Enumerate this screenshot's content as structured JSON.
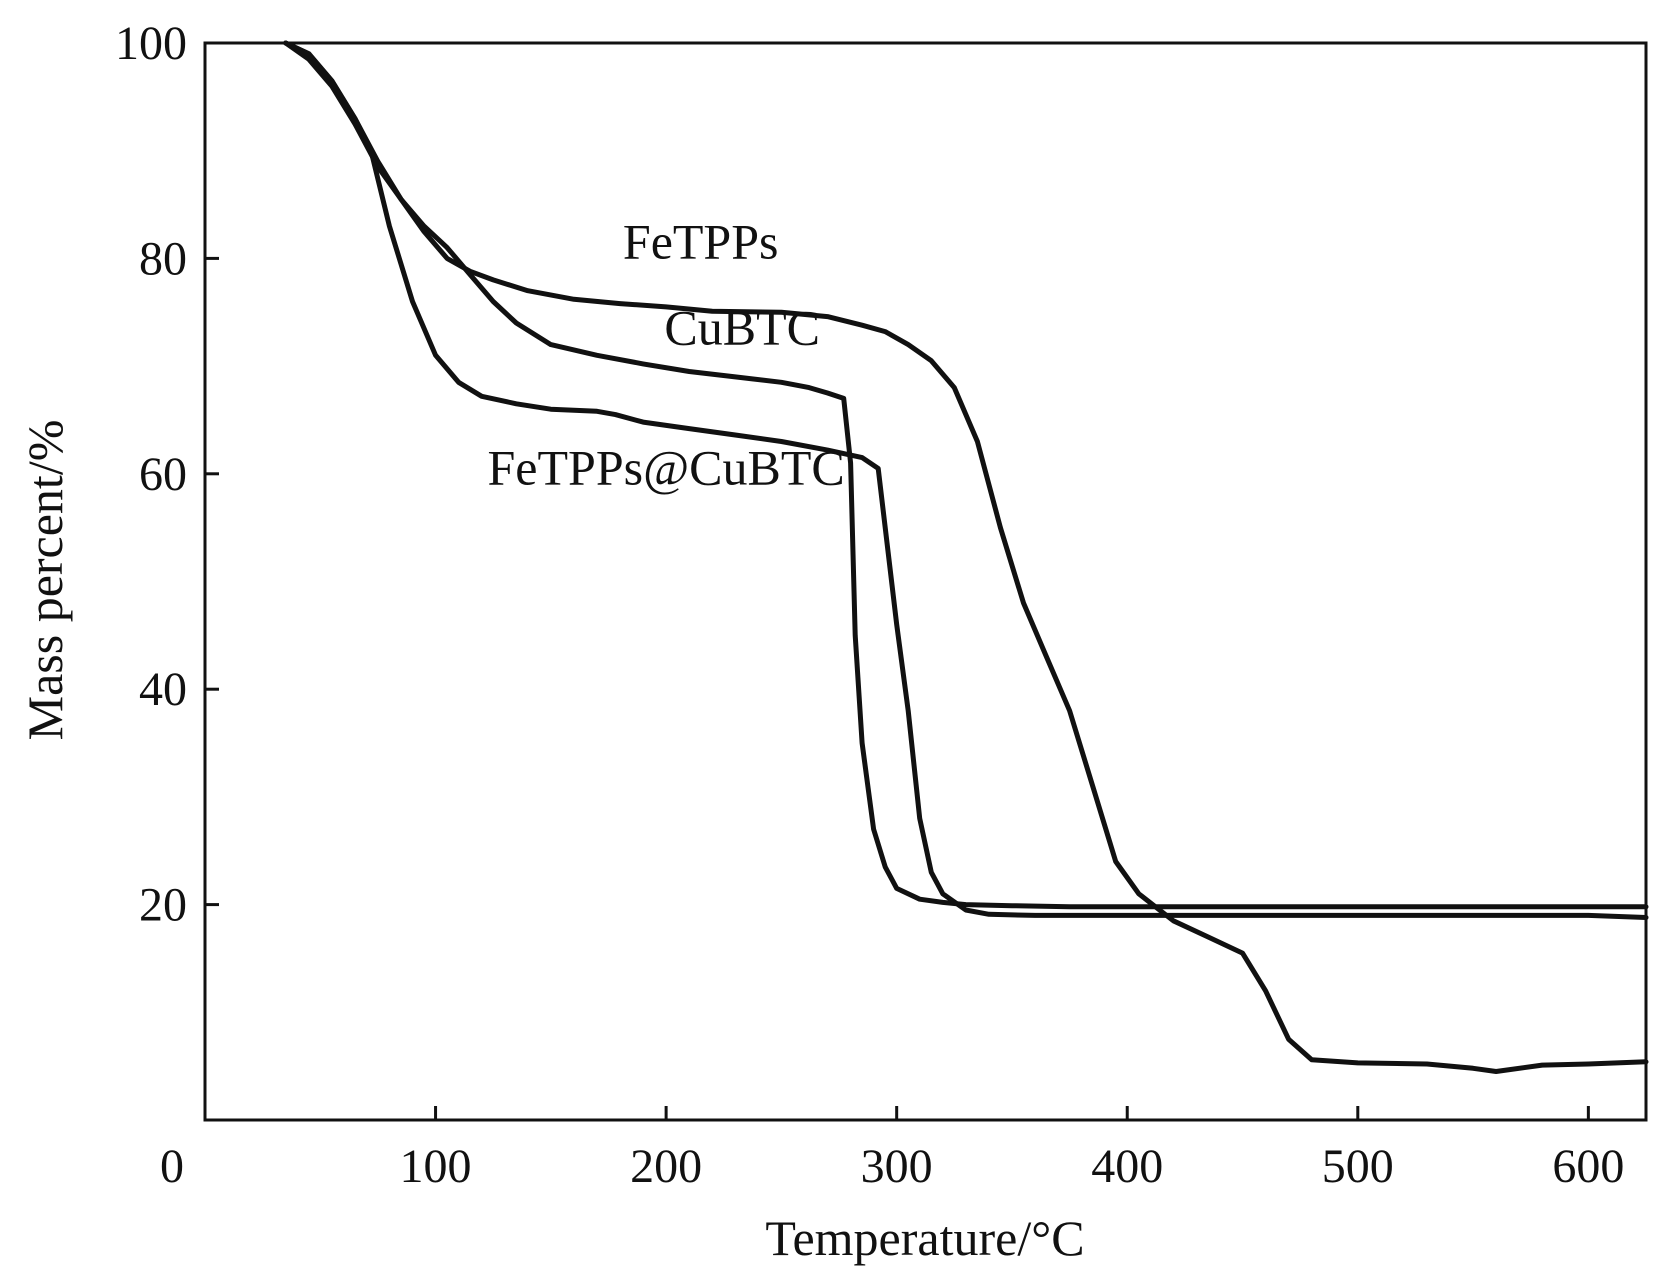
{
  "chart_data": {
    "type": "line",
    "xlabel": "Temperature/°C",
    "ylabel": "Mass percent/%",
    "xlim": [
      0,
      625
    ],
    "ylim": [
      0,
      100
    ],
    "origin_label": "0",
    "x_ticks": [
      100,
      200,
      300,
      400,
      500,
      600
    ],
    "x_tick_labels": [
      "100",
      "200",
      "300",
      "400",
      "500",
      "600"
    ],
    "y_ticks": [
      20,
      40,
      60,
      80,
      100
    ],
    "y_tick_labels": [
      "20",
      "40",
      "60",
      "80",
      "100"
    ],
    "grid": false,
    "colors": {
      "line": "#111111",
      "axis": "#111111"
    },
    "series": [
      {
        "name": "FeTPPs",
        "label_at": [
          215,
          80
        ],
        "points": [
          [
            35,
            100
          ],
          [
            45,
            99
          ],
          [
            55,
            96.5
          ],
          [
            65,
            93
          ],
          [
            75,
            89
          ],
          [
            85,
            85.5
          ],
          [
            95,
            82.5
          ],
          [
            105,
            80
          ],
          [
            115,
            78.8
          ],
          [
            125,
            78
          ],
          [
            140,
            77
          ],
          [
            160,
            76.2
          ],
          [
            180,
            75.8
          ],
          [
            200,
            75.5
          ],
          [
            220,
            75.1
          ],
          [
            250,
            75
          ],
          [
            270,
            74.6
          ],
          [
            285,
            73.8
          ],
          [
            295,
            73.2
          ],
          [
            305,
            72
          ],
          [
            315,
            70.5
          ],
          [
            325,
            68
          ],
          [
            335,
            63
          ],
          [
            345,
            55
          ],
          [
            355,
            48
          ],
          [
            365,
            43
          ],
          [
            375,
            38
          ],
          [
            385,
            31
          ],
          [
            395,
            24
          ],
          [
            405,
            21
          ],
          [
            420,
            18.5
          ],
          [
            435,
            17
          ],
          [
            450,
            15.5
          ],
          [
            460,
            12
          ],
          [
            470,
            7.5
          ],
          [
            480,
            5.6
          ],
          [
            500,
            5.3
          ],
          [
            530,
            5.2
          ],
          [
            550,
            4.8
          ],
          [
            560,
            4.5
          ],
          [
            580,
            5.1
          ],
          [
            600,
            5.2
          ],
          [
            625,
            5.4
          ]
        ]
      },
      {
        "name": "CuBTC",
        "label_at": [
          233,
          72
        ],
        "points": [
          [
            35,
            100
          ],
          [
            45,
            98.5
          ],
          [
            55,
            96
          ],
          [
            65,
            92.5
          ],
          [
            75,
            88.5
          ],
          [
            85,
            85.5
          ],
          [
            95,
            83
          ],
          [
            105,
            81
          ],
          [
            115,
            78.5
          ],
          [
            125,
            76
          ],
          [
            135,
            74
          ],
          [
            150,
            72
          ],
          [
            170,
            71
          ],
          [
            190,
            70.2
          ],
          [
            210,
            69.5
          ],
          [
            230,
            69
          ],
          [
            250,
            68.5
          ],
          [
            262,
            68
          ],
          [
            270,
            67.5
          ],
          [
            277,
            67
          ],
          [
            280,
            61
          ],
          [
            282,
            45
          ],
          [
            285,
            35
          ],
          [
            290,
            27
          ],
          [
            295,
            23.5
          ],
          [
            300,
            21.5
          ],
          [
            310,
            20.5
          ],
          [
            320,
            20.2
          ],
          [
            330,
            20
          ],
          [
            350,
            19.9
          ],
          [
            375,
            19.8
          ],
          [
            400,
            19.8
          ],
          [
            450,
            19.8
          ],
          [
            500,
            19.8
          ],
          [
            550,
            19.8
          ],
          [
            600,
            19.8
          ],
          [
            625,
            19.8
          ]
        ]
      },
      {
        "name": "FeTPPs@CuBTC",
        "label_at": [
          200,
          59
        ],
        "points": [
          [
            35,
            100
          ],
          [
            45,
            99
          ],
          [
            55,
            96.5
          ],
          [
            65,
            93
          ],
          [
            72,
            90
          ],
          [
            80,
            83
          ],
          [
            90,
            76
          ],
          [
            100,
            71
          ],
          [
            110,
            68.5
          ],
          [
            120,
            67.2
          ],
          [
            135,
            66.5
          ],
          [
            150,
            66
          ],
          [
            170,
            65.8
          ],
          [
            178,
            65.5
          ],
          [
            190,
            64.8
          ],
          [
            210,
            64.2
          ],
          [
            230,
            63.6
          ],
          [
            250,
            63
          ],
          [
            270,
            62.2
          ],
          [
            285,
            61.5
          ],
          [
            292,
            60.5
          ],
          [
            295,
            55
          ],
          [
            300,
            46
          ],
          [
            305,
            38
          ],
          [
            310,
            28
          ],
          [
            315,
            23
          ],
          [
            320,
            21
          ],
          [
            330,
            19.5
          ],
          [
            340,
            19.1
          ],
          [
            360,
            19
          ],
          [
            400,
            19
          ],
          [
            450,
            19
          ],
          [
            500,
            19
          ],
          [
            550,
            19
          ],
          [
            600,
            19
          ],
          [
            625,
            18.8
          ]
        ]
      }
    ]
  }
}
